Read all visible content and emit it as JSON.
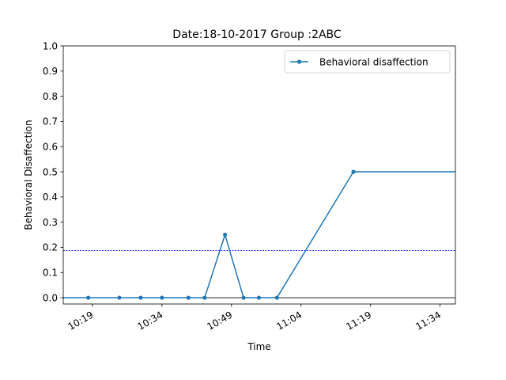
{
  "chart_data": {
    "type": "line",
    "title": "Date:18-10-2017 Group :2ABC",
    "xlabel": "Time",
    "ylabel": "Behavioral Disaffection",
    "x_tick_labels": [
      "10:19",
      "10:34",
      "10:49",
      "11:04",
      "11:19",
      "11:34"
    ],
    "x_tick_minutes": [
      619,
      634,
      649,
      664,
      679,
      694
    ],
    "xlim_minutes": [
      612.7,
      697.3
    ],
    "y_ticks": [
      "0.0",
      "0.1",
      "0.2",
      "0.3",
      "0.4",
      "0.5",
      "0.6",
      "0.7",
      "0.8",
      "0.9",
      "1.0"
    ],
    "ylim": [
      -0.025,
      1.0
    ],
    "series": [
      {
        "name": "Behavioral disaffection",
        "color": "#1f77b4",
        "marker": "circle",
        "x": [
          "10:12",
          "10:18",
          "10:25",
          "10:29",
          "10:34",
          "10:39",
          "10:43",
          "10:47",
          "10:51",
          "10:54",
          "10:58",
          "11:14",
          "11:37"
        ],
        "x_minutes": [
          612.4,
          618.1,
          624.8,
          629.4,
          634.0,
          639.7,
          643.2,
          647.6,
          651.6,
          654.9,
          658.8,
          675.3,
          698.6
        ],
        "values": [
          0,
          0,
          0,
          0,
          0,
          0,
          0,
          0.25,
          0,
          0,
          0,
          0.5,
          0.5
        ]
      }
    ],
    "reference_lines": [
      {
        "orientation": "horizontal",
        "y": 0.1875,
        "style": "dotted",
        "color": "#0000ff"
      },
      {
        "orientation": "horizontal",
        "y": 0.0,
        "style": "solid",
        "color": "#000000"
      }
    ],
    "legend": {
      "position": "upper right",
      "entries": [
        "Behavioral disaffection"
      ]
    },
    "grid": false
  }
}
